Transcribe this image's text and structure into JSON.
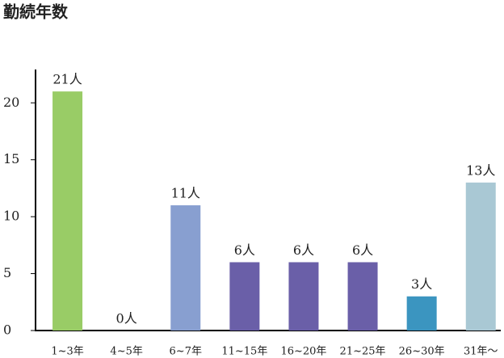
{
  "chart_data": {
    "type": "bar",
    "title": "勤続年数",
    "categories": [
      "1~3年",
      "4~5年",
      "6~7年",
      "11~15年",
      "16~20年",
      "21~25年",
      "26~30年",
      "31年〜"
    ],
    "values": [
      21,
      0,
      11,
      6,
      6,
      6,
      3,
      13
    ],
    "value_labels": [
      "21人",
      "0人",
      "11人",
      "6人",
      "6人",
      "6人",
      "3人",
      "13人"
    ],
    "colors": [
      "#99cc66",
      "#99cc66",
      "#889fd0",
      "#6a5fa8",
      "#6a5fa8",
      "#6a5fa8",
      "#3b95c0",
      "#a9c8d4"
    ],
    "ylim": [
      0,
      23
    ],
    "yticks": [
      0,
      5,
      10,
      15,
      20
    ],
    "grid": false
  }
}
